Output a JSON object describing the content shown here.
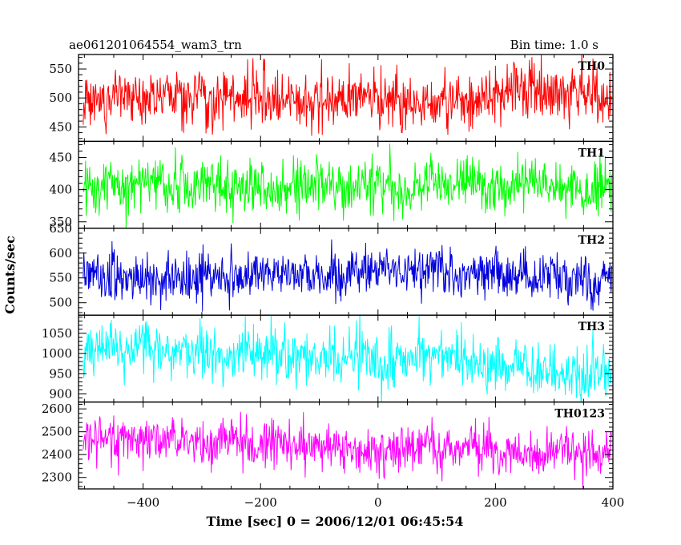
{
  "chart_data": {
    "type": "line",
    "title": "ae061201064554_wam3_trn",
    "bin_time_label": "Bin time: 1.0 s",
    "xlabel": "Time [sec] 0 = 2006/12/01 06:45:54",
    "ylabel": "Counts/sec",
    "x_range": [
      -510,
      400
    ],
    "x_bin": 1.0,
    "x_ticks": [
      -400,
      -200,
      0,
      200,
      400
    ],
    "x_tick_labels": [
      "−400",
      "−200",
      "0",
      "200",
      "400"
    ],
    "grid": false,
    "panels": [
      {
        "label": "TH0",
        "color": "#ff0000",
        "ylim": [
          425,
          575
        ],
        "mean": 500,
        "sd": 24,
        "y_ticks": [
          450,
          500,
          550
        ],
        "y_tick_labels": [
          "450",
          "500",
          "550"
        ]
      },
      {
        "label": "TH1",
        "color": "#00ff00",
        "ylim": [
          340,
          475
        ],
        "mean": 405,
        "sd": 21,
        "y_ticks": [
          350,
          400,
          450
        ],
        "y_tick_labels": [
          "350",
          "400",
          "450"
        ]
      },
      {
        "label": "TH2",
        "color": "#0000dd",
        "ylim": [
          475,
          650
        ],
        "mean": 555,
        "sd": 24,
        "y_ticks": [
          500,
          550,
          600,
          650
        ],
        "y_tick_labels": [
          "500",
          "550",
          "600",
          "650"
        ]
      },
      {
        "label": "TH3",
        "color": "#00ffff",
        "ylim": [
          880,
          1095
        ],
        "mean_start": 1005,
        "mean_end": 965,
        "sd": 33,
        "y_ticks": [
          900,
          950,
          1000,
          1050
        ],
        "y_tick_labels": [
          "900",
          "950",
          "1000",
          "1050"
        ]
      },
      {
        "label": "TH0123",
        "color": "#ff00ff",
        "ylim": [
          2250,
          2630
        ],
        "mean_start": 2470,
        "mean_end": 2400,
        "sd": 50,
        "y_ticks": [
          2300,
          2400,
          2500,
          2600
        ],
        "y_tick_labels": [
          "2300",
          "2400",
          "2500",
          "2600"
        ]
      }
    ]
  }
}
